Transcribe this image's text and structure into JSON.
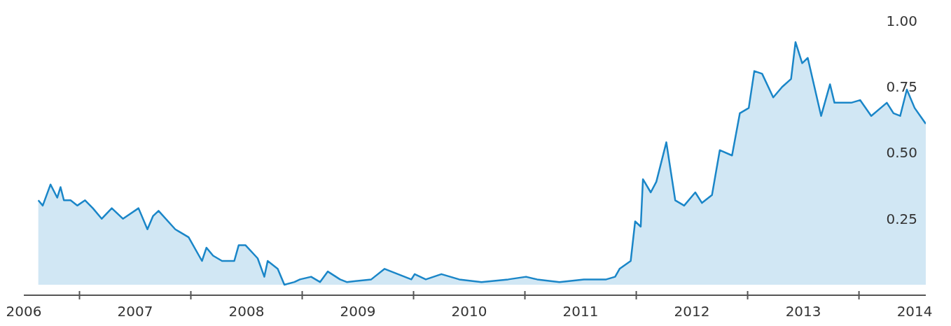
{
  "chart_data": {
    "type": "area",
    "color": "#1a86c8",
    "x": [
      2006.63,
      2006.67,
      2006.74,
      2006.8,
      2006.83,
      2006.86,
      2006.92,
      2006.98,
      2007.05,
      2007.12,
      2007.2,
      2007.29,
      2007.39,
      2007.53,
      2007.61,
      2007.66,
      2007.71,
      2007.86,
      2007.98,
      2008.1,
      2008.14,
      2008.2,
      2008.28,
      2008.39,
      2008.43,
      2008.49,
      2008.6,
      2008.66,
      2008.69,
      2008.78,
      2008.84,
      2008.93,
      2008.98,
      2009.08,
      2009.16,
      2009.23,
      2009.34,
      2009.4,
      2009.62,
      2009.74,
      2009.98,
      2010.01,
      2010.11,
      2010.25,
      2010.41,
      2010.61,
      2010.85,
      2011.01,
      2011.11,
      2011.31,
      2011.53,
      2011.73,
      2011.81,
      2011.85,
      2011.95,
      2011.99,
      2012.04,
      2012.06,
      2012.13,
      2012.18,
      2012.27,
      2012.35,
      2012.43,
      2012.53,
      2012.59,
      2012.68,
      2012.75,
      2012.86,
      2012.93,
      2013.01,
      2013.06,
      2013.13,
      2013.23,
      2013.31,
      2013.39,
      2013.43,
      2013.49,
      2013.54,
      2013.66,
      2013.74,
      2013.78,
      2013.93,
      2014.01,
      2014.11,
      2014.25,
      2014.31,
      2014.37,
      2014.43,
      2014.5,
      2014.6
    ],
    "values": [
      0.32,
      0.3,
      0.38,
      0.33,
      0.37,
      0.32,
      0.32,
      0.3,
      0.32,
      0.29,
      0.25,
      0.29,
      0.25,
      0.29,
      0.21,
      0.26,
      0.28,
      0.21,
      0.18,
      0.09,
      0.14,
      0.11,
      0.09,
      0.09,
      0.15,
      0.15,
      0.1,
      0.03,
      0.09,
      0.06,
      0.0,
      0.01,
      0.02,
      0.03,
      0.01,
      0.05,
      0.02,
      0.01,
      0.02,
      0.06,
      0.02,
      0.04,
      0.02,
      0.04,
      0.02,
      0.01,
      0.02,
      0.03,
      0.02,
      0.01,
      0.02,
      0.02,
      0.03,
      0.06,
      0.09,
      0.24,
      0.22,
      0.4,
      0.35,
      0.39,
      0.54,
      0.32,
      0.3,
      0.35,
      0.31,
      0.34,
      0.51,
      0.49,
      0.65,
      0.67,
      0.81,
      0.8,
      0.71,
      0.75,
      0.78,
      0.92,
      0.84,
      0.86,
      0.64,
      0.76,
      0.69,
      0.69,
      0.7,
      0.64,
      0.69,
      0.65,
      0.64,
      0.74,
      0.67,
      0.61
    ],
    "xlim": [
      2006.5,
      2014.6
    ],
    "ylim": [
      -0.04,
      1
    ],
    "xticks": [
      {
        "value": 2006.5,
        "label": "2006"
      },
      {
        "value": 2007,
        "label": null
      },
      {
        "value": 2007.5,
        "label": "2007"
      },
      {
        "value": 2008,
        "label": null
      },
      {
        "value": 2008.5,
        "label": "2008"
      },
      {
        "value": 2009,
        "label": null
      },
      {
        "value": 2009.5,
        "label": "2009"
      },
      {
        "value": 2010,
        "label": null
      },
      {
        "value": 2010.5,
        "label": "2010"
      },
      {
        "value": 2011,
        "label": null
      },
      {
        "value": 2011.5,
        "label": "2011"
      },
      {
        "value": 2012,
        "label": null
      },
      {
        "value": 2012.5,
        "label": "2012"
      },
      {
        "value": 2013,
        "label": null
      },
      {
        "value": 2013.5,
        "label": "2013"
      },
      {
        "value": 2014,
        "label": null
      },
      {
        "value": 2014.5,
        "label": "2014"
      }
    ],
    "yticks": [
      {
        "value": 0.25,
        "label": "0.25"
      },
      {
        "value": 0.5,
        "label": "0.50"
      },
      {
        "value": 0.75,
        "label": "0.75"
      },
      {
        "value": 1,
        "label": "1.00"
      }
    ]
  }
}
